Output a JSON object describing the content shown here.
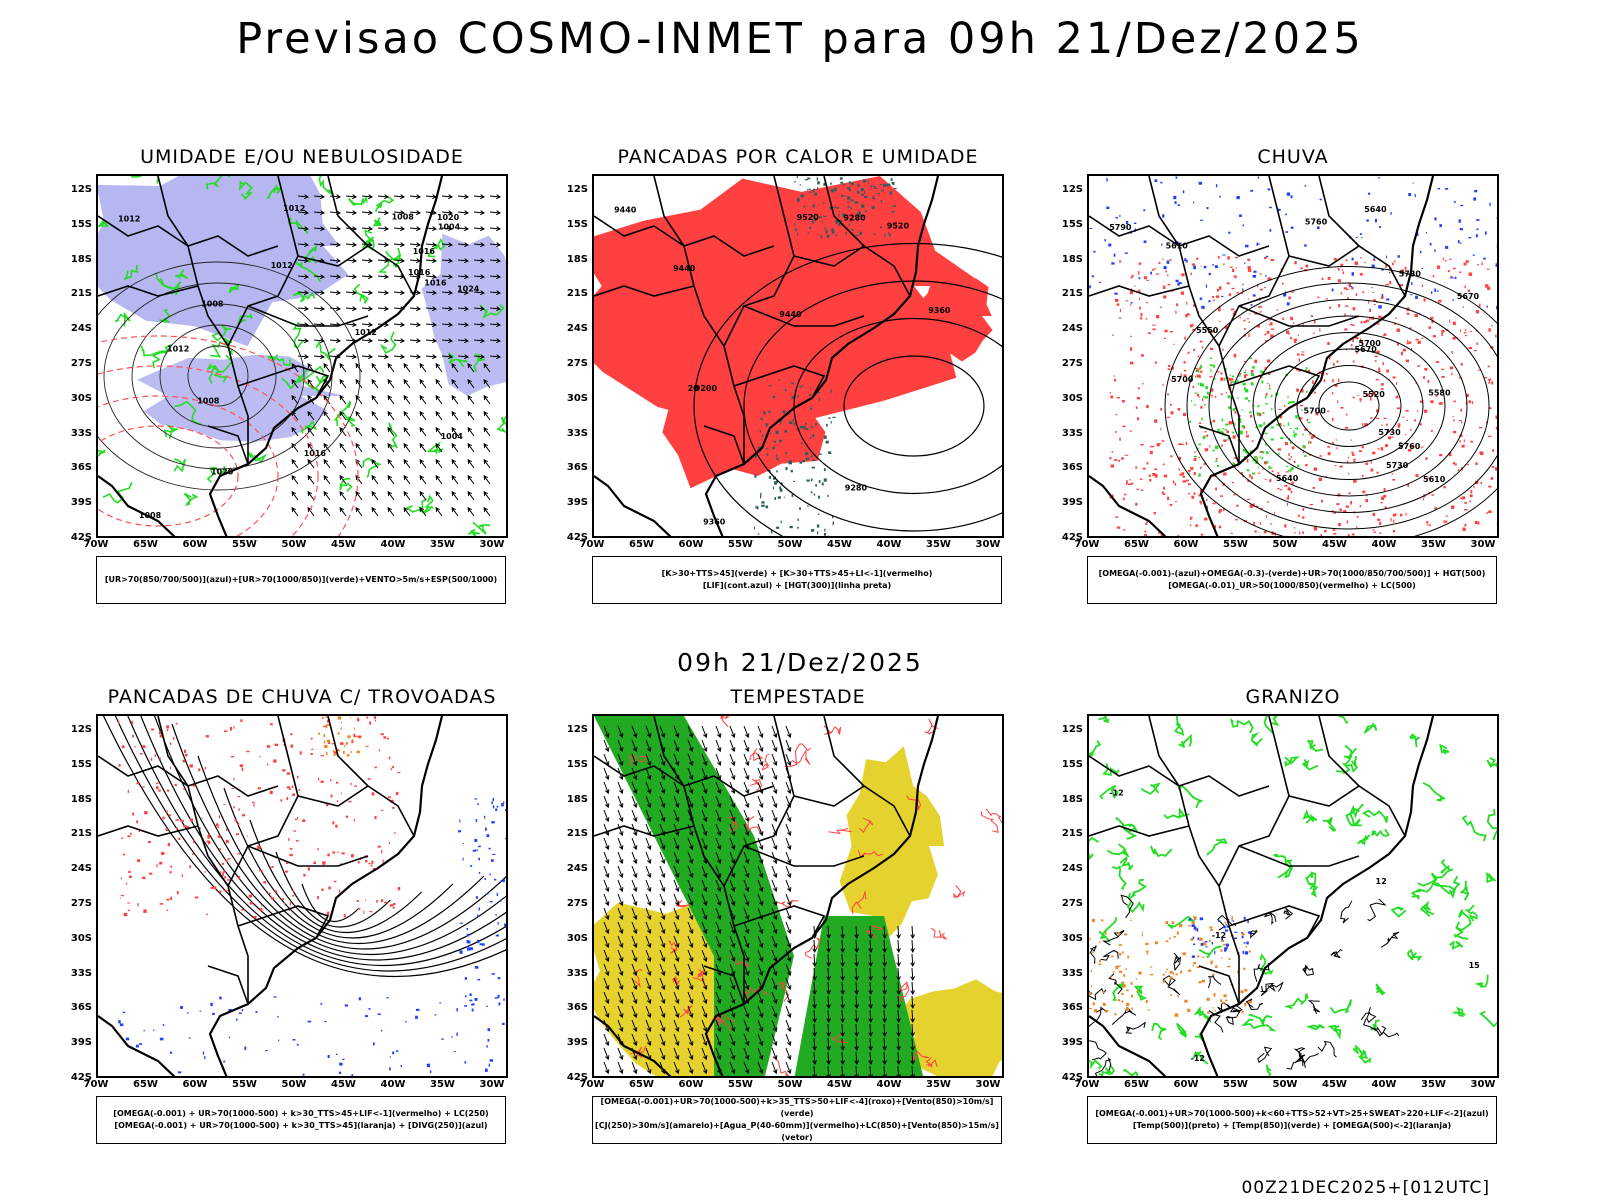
{
  "title": "Previsao COSMO-INMET  para 09h 21/Dez/2025",
  "mid_date": "09h 21/Dez/2025",
  "footer": "00Z21DEC2025+[012UTC]",
  "axes": {
    "lat_labels": [
      "12S",
      "15S",
      "18S",
      "21S",
      "24S",
      "27S",
      "30S",
      "33S",
      "36S",
      "39S",
      "42S"
    ],
    "lon_labels": [
      "70W",
      "65W",
      "60W",
      "55W",
      "50W",
      "45W",
      "40W",
      "35W",
      "30W"
    ]
  },
  "panels": [
    {
      "title": "UMIDADE E/OU NEBULOSIDADE",
      "legend": [
        "[UR>70(850/700/500)](azul)+[UR>70(1000/850)](verde)+VENTO>5m/s+ESP(500/1000)"
      ]
    },
    {
      "title": "PANCADAS POR CALOR E UMIDADE",
      "legend": [
        "[K>30+TTS>45](verde)  +  [K>30+TTS>45+LI<-1](vermelho)",
        "[LIF](cont.azul)  +  [HGT(300)](linha preta)"
      ]
    },
    {
      "title": "CHUVA",
      "legend": [
        "[OMEGA(-0.001)-(azul)+OMEGA(-0.3)-(verde)+UR>70(1000/850/700/500)]  +  HGT(500)",
        "[OMEGA(-0.01)_UR>50(1000/850)(vermelho)  +  LC(500)"
      ]
    },
    {
      "title": "PANCADAS DE CHUVA C/ TROVOADAS",
      "legend": [
        "[OMEGA(-0.001)  +  UR>70(1000-500)  +  k>30_TTS>45+LIF<-1](vermelho)  +  LC(250)",
        "[OMEGA(-0.001)  +  UR>70(1000-500)  +  k>30_TTS>45](laranja)  +  [DIVG(250)](azul)"
      ]
    },
    {
      "title": "TEMPESTADE",
      "legend": [
        "[OMEGA(-0.001)+UR>70(1000-500)+k>35_TTS>50+LIF<-4](roxo)+[Vento(850)>10m/s](verde)",
        "[CJ(250)>30m/s](amarelo)+[Agua_P(40-60mm)](vermelho)+LC(850)+[Vento(850)>15m/s](vetor)"
      ]
    },
    {
      "title": "GRANIZO",
      "legend": [
        "[OMEGA(-0.001)+UR>70(1000-500)+k<60+TTS>52+VT>25+SWEAT>220+LIF<-2](azul)",
        "[Temp(500)](preto)  +  [Temp(850)](verde)  +  [OMEGA(500)<-2](laranja)"
      ]
    }
  ],
  "contour_labels": {
    "p1": [
      "1012",
      "1012",
      "1016",
      "1012",
      "1008",
      "1004",
      "1008",
      "1012",
      "1016",
      "1020",
      "1024",
      "1020",
      "1008",
      "1016",
      "1004",
      "1008",
      "1012",
      "1016"
    ],
    "p2": [
      "9440",
      "9520",
      "9520",
      "9440",
      "9360",
      "9280",
      "9200",
      "9440",
      "9360",
      "9280",
      "20"
    ],
    "p3": [
      "5790",
      "5760",
      "5730",
      "5700",
      "5670",
      "5640",
      "5610",
      "5580",
      "5550",
      "5520",
      "5760",
      "5730",
      "5700",
      "5670",
      "5640",
      "5610",
      "5700",
      "5730"
    ],
    "p6": [
      "-12",
      "-12",
      "-12",
      "15",
      "12"
    ]
  },
  "colors": {
    "blue_fill": "#7a7ae6",
    "green": "#22dd22",
    "red": "#ff4040",
    "dark_teal": "#2f5c5c",
    "yellow": "#e6d22e",
    "dark_green": "#22aa22",
    "orange": "#f0821e",
    "blue": "#2040ff"
  }
}
